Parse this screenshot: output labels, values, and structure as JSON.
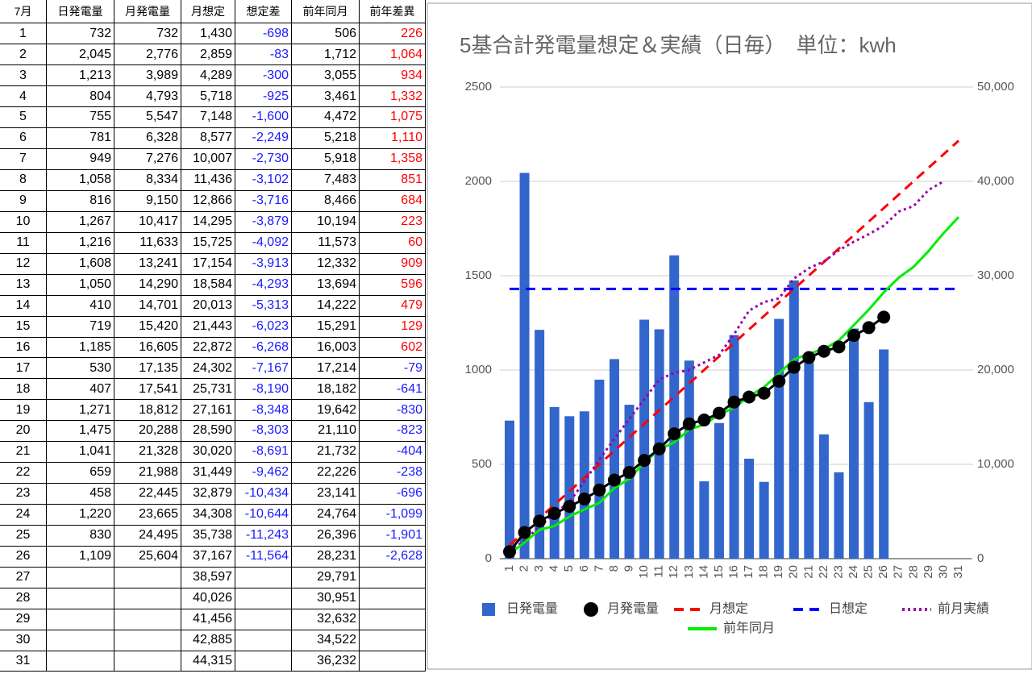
{
  "table": {
    "header": [
      "7月",
      "日発電量",
      "月発電量",
      "月想定",
      "想定差",
      "前年同月",
      "前年差異"
    ],
    "rows": [
      [
        "1",
        "732",
        "732",
        "1,430",
        "-698",
        "506",
        "226"
      ],
      [
        "2",
        "2,045",
        "2,776",
        "2,859",
        "-83",
        "1,712",
        "1,064"
      ],
      [
        "3",
        "1,213",
        "3,989",
        "4,289",
        "-300",
        "3,055",
        "934"
      ],
      [
        "4",
        "804",
        "4,793",
        "5,718",
        "-925",
        "3,461",
        "1,332"
      ],
      [
        "5",
        "755",
        "5,547",
        "7,148",
        "-1,600",
        "4,472",
        "1,075"
      ],
      [
        "6",
        "781",
        "6,328",
        "8,577",
        "-2,249",
        "5,218",
        "1,110"
      ],
      [
        "7",
        "949",
        "7,276",
        "10,007",
        "-2,730",
        "5,918",
        "1,358"
      ],
      [
        "8",
        "1,058",
        "8,334",
        "11,436",
        "-3,102",
        "7,483",
        "851"
      ],
      [
        "9",
        "816",
        "9,150",
        "12,866",
        "-3,716",
        "8,466",
        "684"
      ],
      [
        "10",
        "1,267",
        "10,417",
        "14,295",
        "-3,879",
        "10,194",
        "223"
      ],
      [
        "11",
        "1,216",
        "11,633",
        "15,725",
        "-4,092",
        "11,573",
        "60"
      ],
      [
        "12",
        "1,608",
        "13,241",
        "17,154",
        "-3,913",
        "12,332",
        "909"
      ],
      [
        "13",
        "1,050",
        "14,290",
        "18,584",
        "-4,293",
        "13,694",
        "596"
      ],
      [
        "14",
        "410",
        "14,701",
        "20,013",
        "-5,313",
        "14,222",
        "479"
      ],
      [
        "15",
        "719",
        "15,420",
        "21,443",
        "-6,023",
        "15,291",
        "129"
      ],
      [
        "16",
        "1,185",
        "16,605",
        "22,872",
        "-6,268",
        "16,003",
        "602"
      ],
      [
        "17",
        "530",
        "17,135",
        "24,302",
        "-7,167",
        "17,214",
        "-79"
      ],
      [
        "18",
        "407",
        "17,541",
        "25,731",
        "-8,190",
        "18,182",
        "-641"
      ],
      [
        "19",
        "1,271",
        "18,812",
        "27,161",
        "-8,348",
        "19,642",
        "-830"
      ],
      [
        "20",
        "1,475",
        "20,288",
        "28,590",
        "-8,303",
        "21,110",
        "-823"
      ],
      [
        "21",
        "1,041",
        "21,328",
        "30,020",
        "-8,691",
        "21,732",
        "-404"
      ],
      [
        "22",
        "659",
        "21,988",
        "31,449",
        "-9,462",
        "22,226",
        "-238"
      ],
      [
        "23",
        "458",
        "22,445",
        "32,879",
        "-10,434",
        "23,141",
        "-696"
      ],
      [
        "24",
        "1,220",
        "23,665",
        "34,308",
        "-10,644",
        "24,764",
        "-1,099"
      ],
      [
        "25",
        "830",
        "24,495",
        "35,738",
        "-11,243",
        "26,396",
        "-1,901"
      ],
      [
        "26",
        "1,109",
        "25,604",
        "37,167",
        "-11,564",
        "28,231",
        "-2,628"
      ],
      [
        "27",
        null,
        null,
        "38,597",
        null,
        "29,791",
        null
      ],
      [
        "28",
        null,
        null,
        "40,026",
        null,
        "30,951",
        null
      ],
      [
        "29",
        null,
        null,
        "41,456",
        null,
        "32,632",
        null
      ],
      [
        "30",
        null,
        null,
        "42,885",
        null,
        "34,522",
        null
      ],
      [
        "31",
        null,
        null,
        "44,315",
        null,
        "36,232",
        null
      ]
    ]
  },
  "chart_data": {
    "type": "combo",
    "title": "5基合計発電量想定＆実績（日毎）　単位：kwh",
    "categories": [
      "1",
      "2",
      "3",
      "4",
      "5",
      "6",
      "7",
      "8",
      "9",
      "10",
      "11",
      "12",
      "13",
      "14",
      "15",
      "16",
      "17",
      "18",
      "19",
      "20",
      "21",
      "22",
      "23",
      "24",
      "25",
      "26",
      "27",
      "28",
      "29",
      "30",
      "31"
    ],
    "ylim": [
      0,
      2500
    ],
    "yticks": [
      0,
      500,
      1000,
      1500,
      2000,
      2500
    ],
    "y2lim": [
      0,
      50000
    ],
    "y2ticks": [
      0,
      {
        "value": 10000,
        "label": "10,000"
      },
      {
        "value": 20000,
        "label": "20,000"
      },
      {
        "value": 30000,
        "label": "30,000"
      },
      {
        "value": 40000,
        "label": "40,000"
      },
      {
        "value": 50000,
        "label": "50,000"
      }
    ],
    "grid": true,
    "series": [
      {
        "name": "日発電量",
        "kind": "bar",
        "color": "#3366cc",
        "values": [
          732,
          2045,
          1213,
          804,
          755,
          781,
          949,
          1058,
          816,
          1267,
          1216,
          1608,
          1050,
          410,
          719,
          1185,
          530,
          407,
          1271,
          1475,
          1041,
          659,
          458,
          1220,
          830,
          1109,
          null,
          null,
          null,
          null,
          null
        ]
      },
      {
        "name": "月発電量",
        "kind": "marker-line",
        "color": "#000000",
        "axis": "y2",
        "values": [
          732,
          2776,
          3989,
          4793,
          5547,
          6328,
          7276,
          8334,
          9150,
          10417,
          11633,
          13241,
          14290,
          14701,
          15420,
          16605,
          17135,
          17541,
          18812,
          20288,
          21328,
          21988,
          22445,
          23665,
          24495,
          25604,
          null,
          null,
          null,
          null,
          null
        ]
      },
      {
        "name": "月想定",
        "kind": "line",
        "dash": "dashed",
        "color": "#ff0000",
        "axis": "y2",
        "values": [
          1430,
          2859,
          4289,
          5718,
          7148,
          8577,
          10007,
          11436,
          12866,
          14295,
          15725,
          17154,
          18584,
          20013,
          21443,
          22872,
          24302,
          25731,
          27161,
          28590,
          30020,
          31449,
          32879,
          34308,
          35738,
          37167,
          38597,
          40026,
          41456,
          42885,
          44315
        ]
      },
      {
        "name": "日想定",
        "kind": "line",
        "dash": "dashed",
        "color": "#0000ff",
        "values": [
          1430,
          1430,
          1430,
          1430,
          1430,
          1430,
          1430,
          1430,
          1430,
          1430,
          1430,
          1430,
          1430,
          1430,
          1430,
          1430,
          1430,
          1430,
          1430,
          1430,
          1430,
          1430,
          1430,
          1430,
          1430,
          1430,
          1430,
          1430,
          1430,
          1430,
          1430
        ]
      },
      {
        "name": "前月実績",
        "kind": "line",
        "dash": "dotted",
        "color": "#9900aa",
        "axis": "y2",
        "values": [
          800,
          1900,
          3400,
          4800,
          6000,
          8200,
          10500,
          12700,
          14800,
          16900,
          19000,
          19700,
          20000,
          20800,
          21600,
          23800,
          26300,
          27200,
          27600,
          29700,
          30800,
          31500,
          32700,
          33600,
          34400,
          35300,
          36800,
          37400,
          39100,
          40000,
          null
        ]
      },
      {
        "name": "前年同月",
        "kind": "line",
        "color": "#00ee00",
        "axis": "y2",
        "values": [
          506,
          1712,
          3055,
          3461,
          4472,
          5218,
          5918,
          7483,
          8466,
          10194,
          11573,
          12332,
          13694,
          14222,
          15291,
          16003,
          17214,
          18182,
          19642,
          21110,
          21732,
          22226,
          23141,
          24764,
          26396,
          28231,
          29791,
          30951,
          32632,
          34522,
          36232
        ]
      }
    ]
  }
}
